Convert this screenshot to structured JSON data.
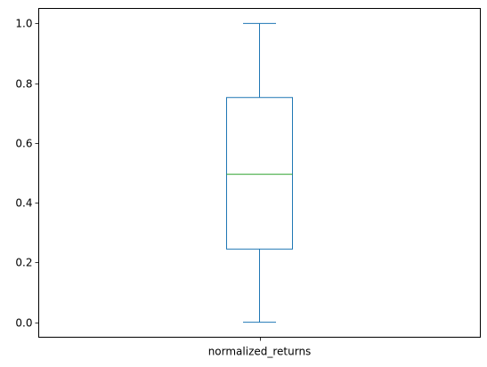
{
  "chart_data": {
    "type": "box",
    "categories": [
      "normalized_returns"
    ],
    "boxes": [
      {
        "category": "normalized_returns",
        "min": 0.0,
        "q1": 0.245,
        "median": 0.495,
        "q3": 0.752,
        "max": 1.0
      }
    ],
    "ylim": [
      -0.05,
      1.05
    ],
    "yticks": [
      0.0,
      0.2,
      0.4,
      0.6,
      0.8,
      1.0
    ],
    "ytick_labels": [
      "0.0",
      "0.2",
      "0.4",
      "0.6",
      "0.8",
      "1.0"
    ],
    "grid": false,
    "colors": {
      "box": "#1f77b4",
      "median": "#2ca02c",
      "axes": "#000000"
    }
  }
}
